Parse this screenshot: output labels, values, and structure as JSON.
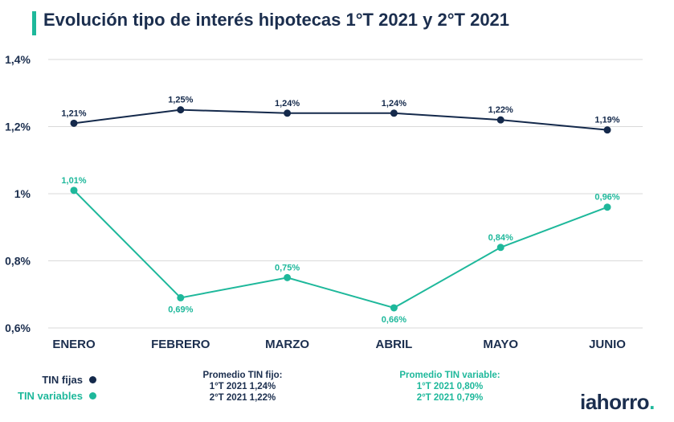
{
  "title": "Evolución tipo de interés hipotecas 1°T 2021 y 2°T 2021",
  "chart_data": {
    "type": "line",
    "categories": [
      "ENERO",
      "FEBRERO",
      "MARZO",
      "ABRIL",
      "MAYO",
      "JUNIO"
    ],
    "ylim": [
      0.6,
      1.4
    ],
    "yticks": [
      "0,6%",
      "0,8%",
      "1%",
      "1,2%",
      "1,4%"
    ],
    "ytick_values": [
      0.6,
      0.8,
      1.0,
      1.2,
      1.4
    ],
    "grid": true,
    "series": [
      {
        "name": "TIN fijas",
        "color": "#14294b",
        "values": [
          1.21,
          1.25,
          1.24,
          1.24,
          1.22,
          1.19
        ],
        "labels": [
          "1,21%",
          "1,25%",
          "1,24%",
          "1,24%",
          "1,22%",
          "1,19%"
        ]
      },
      {
        "name": "TIN variables",
        "color": "#1eb89b",
        "values": [
          1.01,
          0.69,
          0.75,
          0.66,
          0.84,
          0.96
        ],
        "labels": [
          "1,01%",
          "0,69%",
          "0,75%",
          "0,66%",
          "0,84%",
          "0,96%"
        ]
      }
    ]
  },
  "legend": {
    "fixed_label": "TIN fijas",
    "variable_label": "TIN variables"
  },
  "averages": {
    "fixed": {
      "title": "Promedio TIN fijo:",
      "q1": "1°T 2021 1,24%",
      "q2": "2°T 2021 1,22%"
    },
    "variable": {
      "title": "Promedio TIN variable:",
      "q1": "1°T 2021 0,80%",
      "q2": "2°T 2021 0,79%"
    }
  },
  "logo": {
    "text": "iahorro",
    "dot": "."
  },
  "colors": {
    "navy": "#1b2e4e",
    "teal": "#1eb89b",
    "grid": "#d9d9d9"
  }
}
